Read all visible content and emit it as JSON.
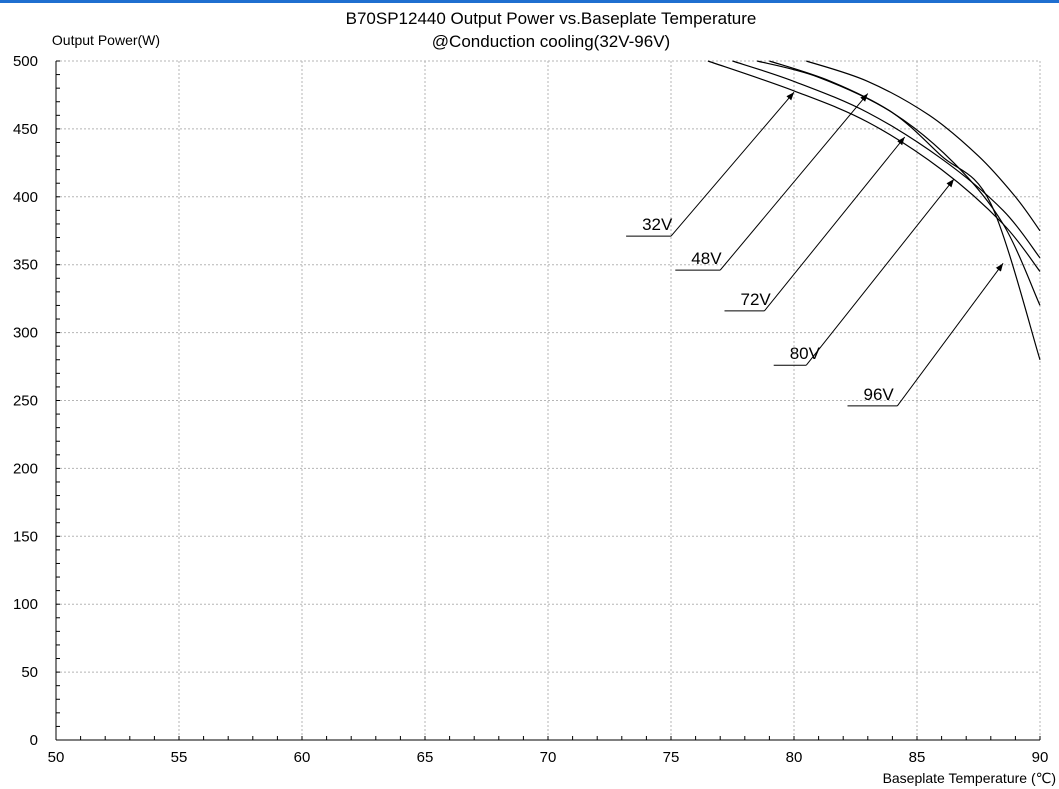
{
  "accent_color": "#1f6fd0",
  "chart_data": {
    "type": "line",
    "title": "B70SP12440  Output Power vs.Baseplate  Temperature",
    "subtitle": "@Conduction cooling(32V-96V)",
    "ylabel": "Output Power(W)",
    "xlabel": "Baseplate Temperature (℃)",
    "xlim": [
      50,
      90
    ],
    "ylim": [
      0,
      500
    ],
    "x_ticks": [
      50,
      55,
      60,
      65,
      70,
      75,
      80,
      85,
      90
    ],
    "y_ticks": [
      0,
      50,
      100,
      150,
      200,
      250,
      300,
      350,
      400,
      450,
      500
    ],
    "grid": true,
    "series": [
      {
        "name": "32V",
        "points": [
          [
            76.5,
            500
          ],
          [
            80,
            478
          ],
          [
            83,
            455
          ],
          [
            86,
            420
          ],
          [
            88.5,
            380
          ],
          [
            90,
            345
          ]
        ],
        "annotation_at": [
          80,
          477
        ]
      },
      {
        "name": "48V",
        "points": [
          [
            77.5,
            500
          ],
          [
            80,
            485
          ],
          [
            83,
            462
          ],
          [
            86,
            428
          ],
          [
            88.5,
            390
          ],
          [
            90,
            355
          ]
        ],
        "annotation_at": [
          83,
          476
        ]
      },
      {
        "name": "72V",
        "points": [
          [
            78.5,
            500
          ],
          [
            81,
            488
          ],
          [
            84,
            462
          ],
          [
            86.5,
            425
          ],
          [
            88.5,
            380
          ],
          [
            90,
            320
          ]
        ],
        "annotation_at": [
          84.5,
          444
        ]
      },
      {
        "name": "80V",
        "points": [
          [
            79,
            500
          ],
          [
            81.5,
            485
          ],
          [
            84,
            462
          ],
          [
            86,
            430
          ],
          [
            88,
            395
          ],
          [
            90,
            280
          ]
        ],
        "annotation_at": [
          86.5,
          413
        ]
      },
      {
        "name": "96V",
        "points": [
          [
            80.5,
            500
          ],
          [
            83,
            485
          ],
          [
            85.5,
            460
          ],
          [
            87.5,
            430
          ],
          [
            89,
            400
          ],
          [
            90,
            375
          ]
        ],
        "annotation_at": [
          88.5,
          351
        ]
      }
    ],
    "annotations": [
      {
        "text": "32V",
        "label_at": [
          73.5,
          371
        ],
        "elbow_at": [
          75,
          371
        ]
      },
      {
        "text": "48V",
        "label_at": [
          75.5,
          346
        ],
        "elbow_at": [
          77,
          346
        ]
      },
      {
        "text": "72V",
        "label_at": [
          77.5,
          316
        ],
        "elbow_at": [
          78.8,
          316
        ]
      },
      {
        "text": "80V",
        "label_at": [
          79.5,
          276
        ],
        "elbow_at": [
          80.5,
          276
        ]
      },
      {
        "text": "96V",
        "label_at": [
          82.5,
          246
        ],
        "elbow_at": [
          84.2,
          246
        ]
      }
    ]
  }
}
